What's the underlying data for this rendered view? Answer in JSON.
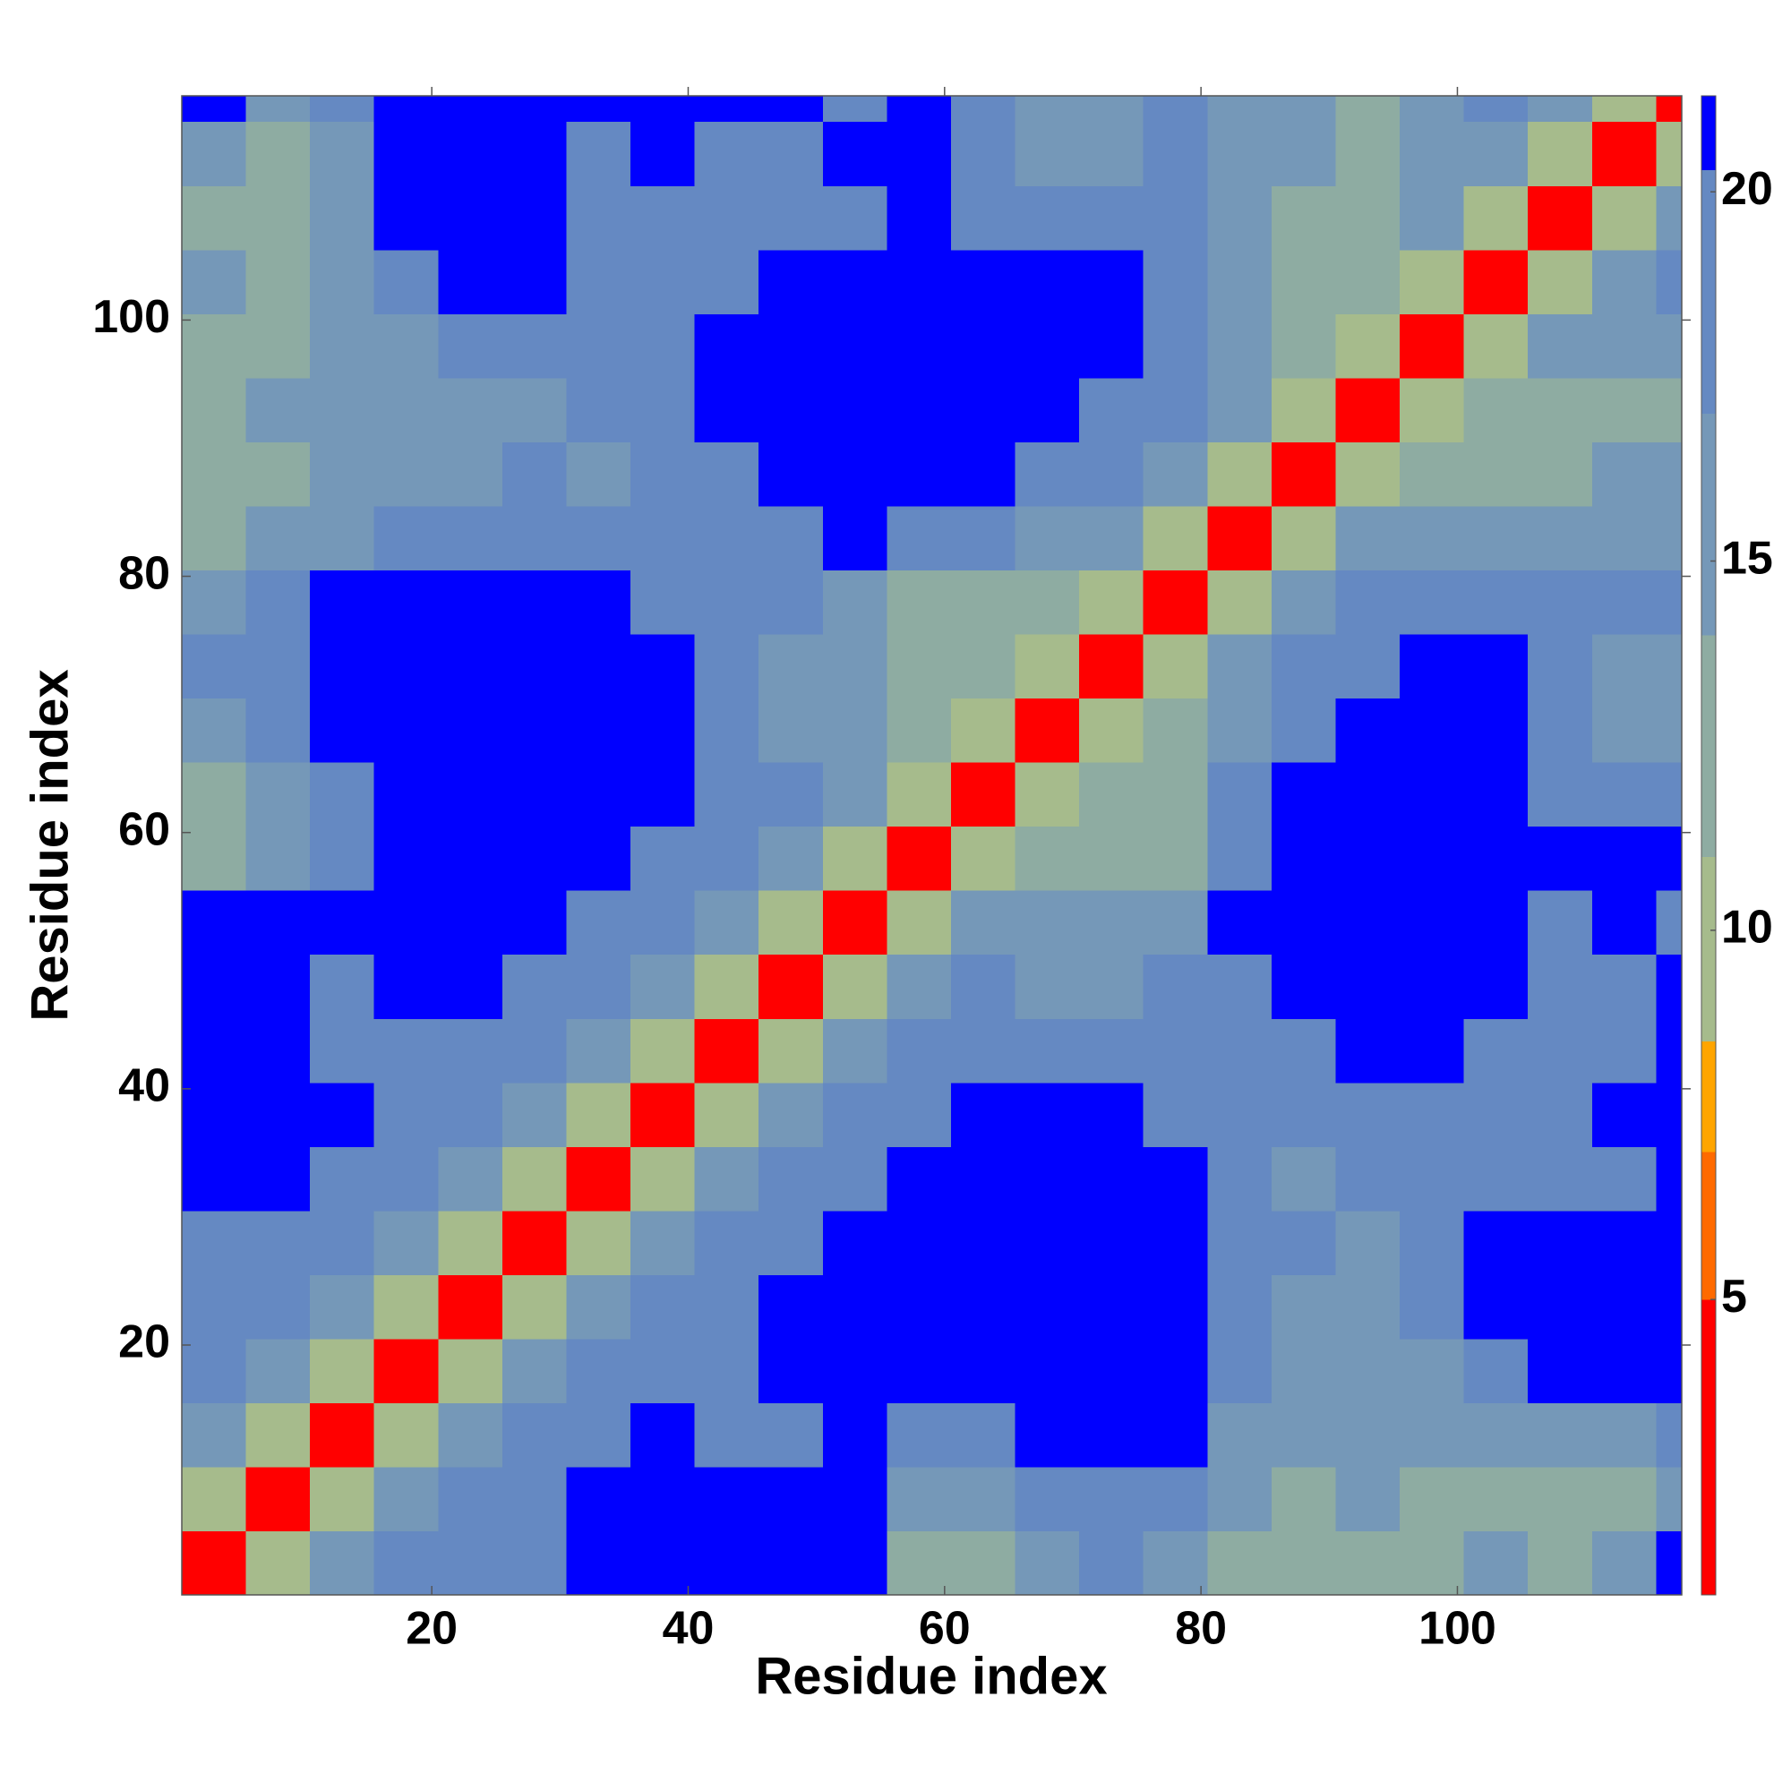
{
  "chart_data": {
    "type": "heatmap",
    "xlabel": "Residue index",
    "ylabel": "Residue index",
    "xbins": [
      0.5,
      5.5,
      10.5,
      15.5,
      20.5,
      25.5,
      30.5,
      35.5,
      40.5,
      45.5,
      50.5,
      55.5,
      60.5,
      65.5,
      70.5,
      75.5,
      80.5,
      85.5,
      90.5,
      95.5,
      100.5,
      105.5,
      110.5,
      115.5,
      117.5
    ],
    "ybins": [
      0.5,
      5.5,
      10.5,
      15.5,
      20.5,
      25.5,
      30.5,
      35.5,
      40.5,
      45.5,
      50.5,
      55.5,
      60.5,
      65.5,
      70.5,
      75.5,
      80.5,
      85.5,
      90.5,
      95.5,
      100.5,
      105.5,
      110.5,
      115.5,
      117.5
    ],
    "xlim": [
      0.5,
      117.5
    ],
    "ylim": [
      0.5,
      117.5
    ],
    "xticks": [
      20,
      40,
      60,
      80,
      100
    ],
    "yticks": [
      20,
      40,
      60,
      80,
      100
    ],
    "z": [
      [
        4,
        9,
        14,
        17,
        19,
        19,
        21,
        21,
        21,
        21,
        21,
        13,
        13,
        16,
        18,
        15,
        13,
        13,
        13,
        13,
        14,
        13,
        14,
        21
      ],
      [
        9,
        4,
        9,
        14,
        17,
        19,
        21,
        21,
        21,
        21,
        21,
        14,
        14,
        18,
        20,
        17,
        14,
        13,
        14,
        13,
        13,
        13,
        13,
        15
      ],
      [
        14,
        9,
        4,
        9,
        14,
        17,
        20,
        21,
        19,
        20,
        21,
        17,
        18,
        21,
        21,
        21,
        15,
        14,
        14,
        15,
        14,
        15,
        16,
        17
      ],
      [
        17,
        14,
        9,
        4,
        9,
        14,
        17,
        19,
        20,
        21,
        21,
        21,
        21,
        21,
        21,
        21,
        18,
        15,
        16,
        16,
        19,
        21,
        21,
        21
      ],
      [
        19,
        17,
        14,
        9,
        4,
        9,
        14,
        17,
        19,
        21,
        21,
        21,
        21,
        21,
        21,
        21,
        19,
        16,
        15,
        17,
        21,
        21,
        21,
        21
      ],
      [
        19,
        19,
        17,
        14,
        9,
        4,
        9,
        14,
        17,
        19,
        21,
        21,
        21,
        21,
        21,
        21,
        18,
        17,
        16,
        19,
        21,
        21,
        21,
        21
      ],
      [
        21,
        21,
        20,
        17,
        14,
        9,
        4,
        9,
        14,
        17,
        19,
        21,
        21,
        21,
        21,
        21,
        17,
        16,
        17,
        19,
        19,
        18,
        20,
        21
      ],
      [
        21,
        21,
        21,
        19,
        17,
        14,
        9,
        4,
        9,
        14,
        17,
        19,
        21,
        21,
        21,
        20,
        19,
        18,
        18,
        20,
        19,
        19,
        21,
        21
      ],
      [
        21,
        21,
        19,
        20,
        19,
        17,
        14,
        9,
        4,
        9,
        14,
        17,
        19,
        19,
        17,
        18,
        18,
        20,
        21,
        21,
        19,
        19,
        19,
        21
      ],
      [
        21,
        21,
        20,
        21,
        21,
        19,
        17,
        14,
        9,
        4,
        9,
        14,
        17,
        16,
        16,
        17,
        19,
        21,
        21,
        21,
        21,
        20,
        19,
        21
      ],
      [
        21,
        21,
        21,
        21,
        21,
        21,
        19,
        17,
        14,
        9,
        4,
        9,
        14,
        15,
        14,
        16,
        21,
        21,
        21,
        21,
        21,
        20,
        21,
        20
      ],
      [
        13,
        14,
        17,
        21,
        21,
        21,
        21,
        19,
        17,
        14,
        9,
        4,
        9,
        13,
        12,
        13,
        20,
        21,
        21,
        21,
        21,
        21,
        21,
        21
      ],
      [
        13,
        14,
        18,
        21,
        21,
        21,
        21,
        21,
        19,
        17,
        14,
        9,
        4,
        9,
        11,
        13,
        19,
        21,
        21,
        21,
        21,
        18,
        18,
        20
      ],
      [
        16,
        18,
        21,
        21,
        21,
        21,
        21,
        21,
        19,
        16,
        15,
        13,
        9,
        4,
        9,
        13,
        16,
        20,
        21,
        21,
        21,
        19,
        15,
        14
      ],
      [
        18,
        20,
        21,
        21,
        21,
        21,
        21,
        21,
        17,
        16,
        14,
        12,
        11,
        9,
        4,
        9,
        14,
        17,
        20,
        21,
        21,
        17,
        16,
        15
      ],
      [
        15,
        17,
        21,
        21,
        21,
        21,
        21,
        20,
        18,
        17,
        16,
        13,
        13,
        13,
        9,
        4,
        9,
        14,
        17,
        18,
        19,
        17,
        17,
        17
      ],
      [
        13,
        14,
        15,
        18,
        19,
        18,
        17,
        19,
        18,
        19,
        21,
        20,
        19,
        16,
        14,
        9,
        4,
        9,
        14,
        14,
        15,
        15,
        15,
        16
      ],
      [
        13,
        13,
        14,
        15,
        16,
        17,
        16,
        18,
        20,
        21,
        21,
        21,
        21,
        20,
        17,
        14,
        9,
        4,
        9,
        12,
        12,
        13,
        14,
        14
      ],
      [
        13,
        14,
        14,
        16,
        15,
        16,
        17,
        18,
        21,
        21,
        21,
        21,
        21,
        21,
        20,
        17,
        14,
        9,
        4,
        9,
        12,
        11,
        13,
        13
      ],
      [
        13,
        13,
        15,
        16,
        17,
        19,
        19,
        20,
        21,
        21,
        21,
        21,
        21,
        21,
        21,
        18,
        14,
        12,
        9,
        4,
        9,
        14,
        14,
        15
      ],
      [
        14,
        13,
        14,
        19,
        21,
        21,
        19,
        19,
        19,
        21,
        21,
        21,
        21,
        21,
        21,
        19,
        15,
        12,
        12,
        9,
        4,
        9,
        14,
        17
      ],
      [
        13,
        13,
        15,
        21,
        21,
        21,
        18,
        19,
        19,
        20,
        20,
        21,
        18,
        19,
        17,
        17,
        15,
        13,
        11,
        14,
        9,
        4,
        9,
        14
      ],
      [
        14,
        13,
        16,
        21,
        21,
        21,
        20,
        21,
        19,
        19,
        21,
        21,
        18,
        15,
        16,
        17,
        15,
        14,
        13,
        14,
        14,
        9,
        4,
        9
      ],
      [
        21,
        15,
        17,
        21,
        21,
        21,
        21,
        21,
        21,
        21,
        20,
        21,
        20,
        14,
        15,
        17,
        16,
        14,
        13,
        15,
        17,
        14,
        9,
        4
      ]
    ],
    "colorbar": {
      "lim": [
        1,
        21.3
      ],
      "bounds": [
        1,
        5,
        7,
        8.5,
        11,
        14,
        17,
        20.3,
        21.3
      ],
      "colors": [
        "#ff0000",
        "#ff6a00",
        "#ffa500",
        "#a6bb8c",
        "#8eaca2",
        "#7598b8",
        "#6589c2",
        "#0000ff"
      ],
      "ticks": [
        5,
        10,
        15,
        20
      ]
    }
  }
}
